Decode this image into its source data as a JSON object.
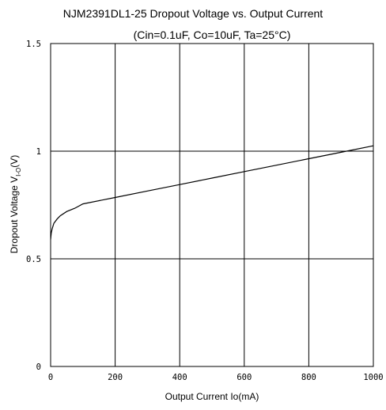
{
  "chart_data": {
    "type": "line",
    "title": "NJM2391DL1-25 Dropout Voltage vs. Output Current",
    "subtitle": "(Cin=0.1uF, Co=10uF, Ta=25°C)",
    "xlabel": "Output Current  Io(mA)",
    "ylabel": {
      "main": "Dropout Voltage  V",
      "subscript": "I-O",
      "unit": "(V)"
    },
    "xlim": [
      0,
      1000
    ],
    "ylim": [
      0,
      1.5
    ],
    "x_ticks": [
      0,
      200,
      400,
      600,
      800,
      1000
    ],
    "x_tick_labels": [
      "0",
      "200",
      "400",
      "600",
      "800",
      "1000"
    ],
    "y_ticks": [
      0,
      0.5,
      1,
      1.5
    ],
    "y_tick_labels": [
      "0",
      "0.5",
      "1",
      "1.5"
    ],
    "grid": true,
    "series": [
      {
        "color": "#000000",
        "x": [
          0,
          2,
          5,
          10,
          20,
          30,
          50,
          75,
          100,
          200,
          300,
          400,
          500,
          600,
          700,
          800,
          900,
          1000
        ],
        "y": [
          0.59,
          0.62,
          0.64,
          0.665,
          0.685,
          0.7,
          0.72,
          0.735,
          0.755,
          0.785,
          0.815,
          0.845,
          0.875,
          0.905,
          0.935,
          0.965,
          0.995,
          1.025
        ]
      }
    ]
  }
}
